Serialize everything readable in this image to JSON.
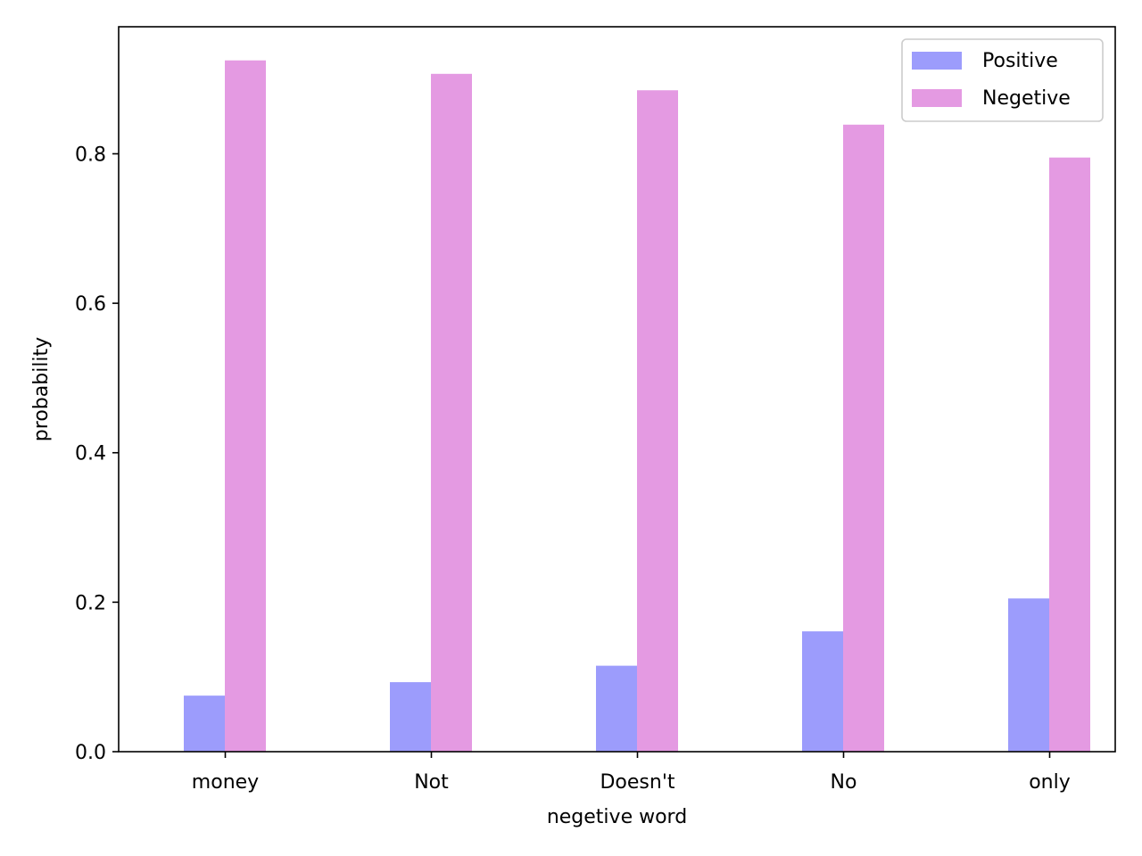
{
  "chart_data": {
    "type": "bar",
    "title": "",
    "xlabel": "negetive word",
    "ylabel": "probability",
    "categories": [
      "money",
      "Not",
      "Doesn't",
      "No",
      "only"
    ],
    "series": [
      {
        "name": "Positive",
        "color": "#9c9cfc",
        "values": [
          0.075,
          0.093,
          0.115,
          0.161,
          0.205
        ]
      },
      {
        "name": "Negetive",
        "color": "#e49ae2",
        "values": [
          0.925,
          0.907,
          0.885,
          0.839,
          0.795
        ]
      }
    ],
    "ylim": [
      0,
      0.97
    ],
    "yticks": [
      0.0,
      0.2,
      0.4,
      0.6,
      0.8
    ],
    "ytick_labels": [
      "0.0",
      "0.2",
      "0.4",
      "0.6",
      "0.8"
    ],
    "grid": false,
    "legend_position": "top-right"
  }
}
